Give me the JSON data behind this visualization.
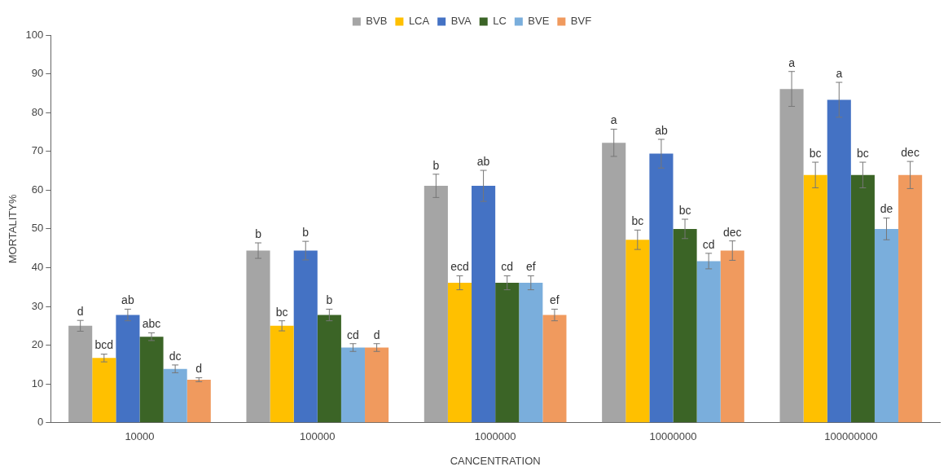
{
  "chart_data": {
    "type": "bar",
    "xlabel": "CANCENTRATION",
    "ylabel": "MORTALITY%",
    "categories": [
      "10000",
      "100000",
      "1000000",
      "10000000",
      "100000000"
    ],
    "series": [
      {
        "name": "BVB",
        "color": "#a5a5a5",
        "values": [
          25,
          44.4,
          61.1,
          72.2,
          86.1
        ],
        "errors": [
          1.4,
          2,
          3,
          3.5,
          4.5
        ],
        "value_labels": [
          "d",
          "b",
          "b",
          "a",
          "a"
        ]
      },
      {
        "name": "LCA",
        "color": "#ffc000",
        "values": [
          16.7,
          25,
          36.1,
          47.2,
          63.9
        ],
        "errors": [
          1,
          1.3,
          1.8,
          2.5,
          3.3
        ],
        "value_labels": [
          "bcd",
          "bc",
          "ecd",
          "bc",
          "bc"
        ]
      },
      {
        "name": "BVA",
        "color": "#4472c4",
        "values": [
          27.8,
          44.4,
          61.1,
          69.4,
          83.3
        ],
        "errors": [
          1.5,
          2.4,
          4,
          3.7,
          4.5
        ],
        "value_labels": [
          "ab",
          "b",
          "ab",
          "ab",
          "a"
        ]
      },
      {
        "name": "LC",
        "color": "#3b6426",
        "values": [
          22.2,
          27.8,
          36.1,
          50,
          63.9
        ],
        "errors": [
          1,
          1.5,
          1.8,
          2.5,
          3.3
        ],
        "value_labels": [
          "abc",
          "b",
          "cd",
          "bc",
          "bc"
        ]
      },
      {
        "name": "BVE",
        "color": "#7aaedc",
        "values": [
          13.9,
          19.4,
          36.1,
          41.7,
          50
        ],
        "errors": [
          1,
          1,
          1.8,
          2,
          2.8
        ],
        "value_labels": [
          "dc",
          "cd",
          "ef",
          "cd",
          "de"
        ]
      },
      {
        "name": "BVF",
        "color": "#f09a5e",
        "values": [
          11.1,
          19.4,
          27.8,
          44.4,
          63.9
        ],
        "errors": [
          0.5,
          1,
          1.5,
          2.5,
          3.5
        ],
        "value_labels": [
          "d",
          "d",
          "ef",
          "dec",
          "dec"
        ]
      }
    ],
    "ylim": [
      0,
      100
    ],
    "yticks": [
      0,
      10,
      20,
      30,
      40,
      50,
      60,
      70,
      80,
      90,
      100
    ],
    "grid": false,
    "legend": "top"
  }
}
